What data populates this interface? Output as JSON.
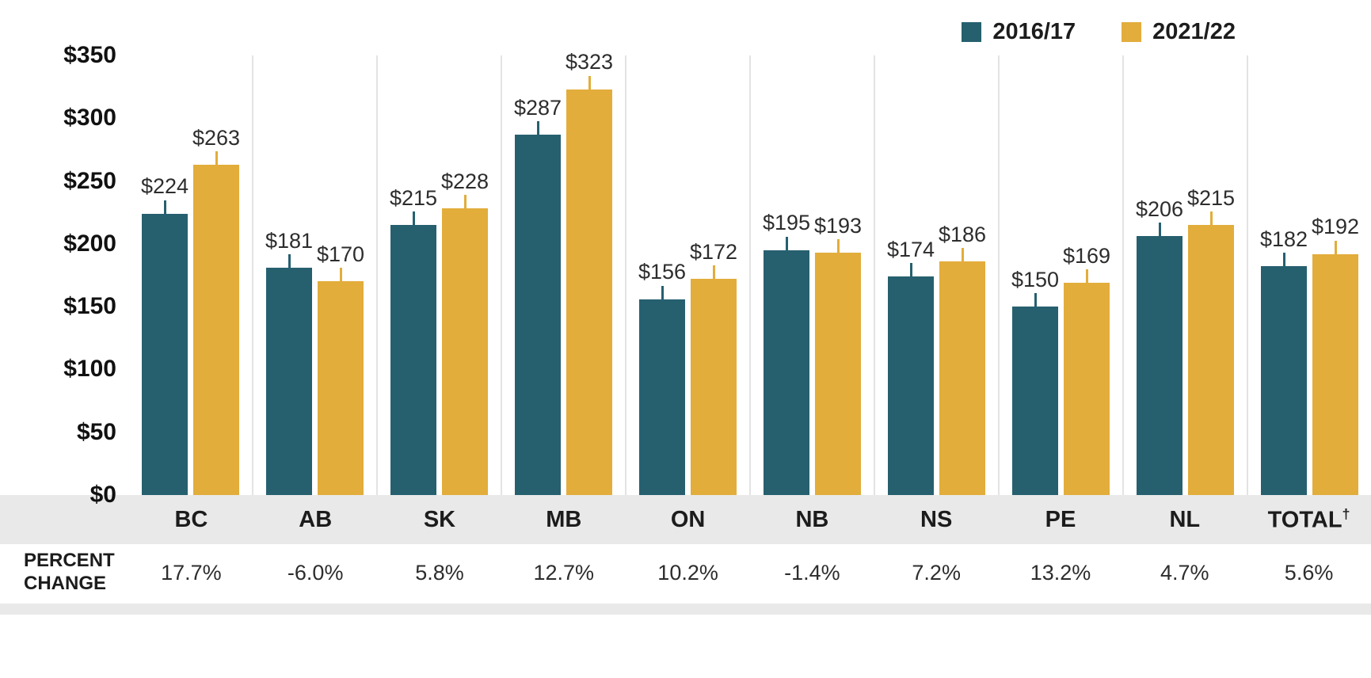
{
  "legend": {
    "items": [
      {
        "label": "2016/17",
        "color": "#26606f"
      },
      {
        "label": "2021/22",
        "color": "#e2ad3b"
      }
    ]
  },
  "percent_row": {
    "label": "PERCENT CHANGE"
  },
  "chart_data": {
    "type": "bar",
    "title": "",
    "categories": [
      "BC",
      "AB",
      "SK",
      "MB",
      "ON",
      "NB",
      "NS",
      "PE",
      "NL",
      "TOTAL†"
    ],
    "series": [
      {
        "name": "2016/17",
        "color": "#26606f",
        "values": [
          224,
          181,
          215,
          287,
          156,
          195,
          174,
          150,
          206,
          182
        ]
      },
      {
        "name": "2021/22",
        "color": "#e2ad3b",
        "values": [
          263,
          170,
          228,
          323,
          172,
          193,
          186,
          169,
          215,
          192
        ]
      }
    ],
    "percent_change": [
      "17.7%",
      "-6.0%",
      "5.8%",
      "12.7%",
      "10.2%",
      "-1.4%",
      "7.2%",
      "13.2%",
      "4.7%",
      "5.6%"
    ],
    "y_ticks": [
      "$350",
      "$300",
      "$250",
      "$200",
      "$150",
      "$100",
      "$50",
      "$0"
    ],
    "ylim": [
      0,
      350
    ],
    "value_prefix": "$",
    "legend_position": "top-right",
    "grid": "vertical-separators-between-groups",
    "error_bars": true
  }
}
